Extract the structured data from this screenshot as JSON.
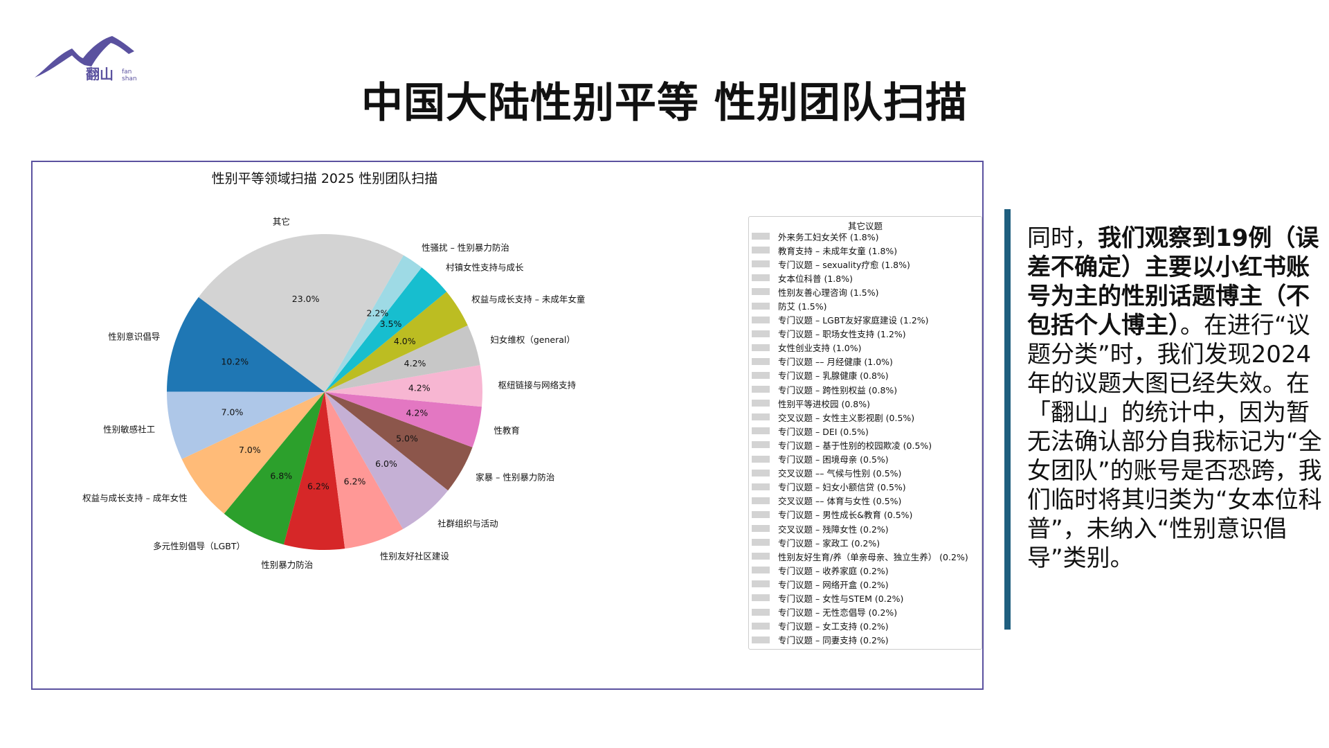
{
  "slide_title": "中国大陆性别平等 性别团队扫描",
  "logo": {
    "text": "翻山",
    "sub_line1": "fan",
    "sub_line2": "shan",
    "color": "#5a519f"
  },
  "chart_data": {
    "type": "pie",
    "title": "性别平等领域扫描 2025 性别团队扫描",
    "start_angle_deg": 60,
    "direction": "counterclockwise",
    "slices": [
      {
        "label": "其它",
        "value": 23.0,
        "pct_label": "23.0%",
        "color": "#d3d3d3"
      },
      {
        "label": "性别意识倡导",
        "value": 10.2,
        "pct_label": "10.2%",
        "color": "#1f77b4"
      },
      {
        "label": "性别敏感社工",
        "value": 7.0,
        "pct_label": "7.0%",
        "color": "#aec7e8"
      },
      {
        "label": "权益与成长支持 – 成年女性",
        "value": 7.0,
        "pct_label": "7.0%",
        "color": "#ffbb78"
      },
      {
        "label": "多元性别倡导（LGBT）",
        "value": 6.8,
        "pct_label": "6.8%",
        "color": "#2ca02c"
      },
      {
        "label": "性别暴力防治",
        "value": 6.2,
        "pct_label": "6.2%",
        "color": "#d62728"
      },
      {
        "label": "性别友好社区建设",
        "value": 6.2,
        "pct_label": "6.2%",
        "color": "#ff9896"
      },
      {
        "label": "社群组织与活动",
        "value": 6.0,
        "pct_label": "6.0%",
        "color": "#c5b0d5"
      },
      {
        "label": "家暴 – 性别暴力防治",
        "value": 5.0,
        "pct_label": "5.0%",
        "color": "#8c564b"
      },
      {
        "label": "性教育",
        "value": 4.2,
        "pct_label": "4.2%",
        "color": "#e377c2"
      },
      {
        "label": "枢纽链接与网络支持",
        "value": 4.2,
        "pct_label": "4.2%",
        "color": "#f7b6d2"
      },
      {
        "label": "妇女维权（general）",
        "value": 4.2,
        "pct_label": "4.2%",
        "color": "#c7c7c7"
      },
      {
        "label": "权益与成长支持 – 未成年女童",
        "value": 4.0,
        "pct_label": "4.0%",
        "color": "#bcbd22"
      },
      {
        "label": "村镇女性支持与成长",
        "value": 3.5,
        "pct_label": "3.5%",
        "color": "#17becf"
      },
      {
        "label": "性骚扰 – 性别暴力防治",
        "value": 2.2,
        "pct_label": "2.2%",
        "color": "#9edae5"
      }
    ],
    "legend": {
      "title": "其它议题",
      "placement": "right",
      "swatch_color": "#d3d3d3",
      "items": [
        "外来务工妇女关怀 (1.8%)",
        "教育支持 – 未成年女童 (1.8%)",
        "专门议题 – sexuality疗愈 (1.8%)",
        "女本位科普 (1.8%)",
        "性别友善心理咨询 (1.5%)",
        "防艾 (1.5%)",
        "专门议题 – LGBT友好家庭建设 (1.2%)",
        "专门议题 – 职场女性支持 (1.2%)",
        "女性创业支持 (1.0%)",
        "专门议题 –– 月经健康 (1.0%)",
        "专门议题 – 乳腺健康 (0.8%)",
        "专门议题 – 跨性别权益 (0.8%)",
        "性别平等进校园 (0.8%)",
        "交叉议题 – 女性主义影视剧 (0.5%)",
        "专门议题 – DEI (0.5%)",
        "专门议题 – 基于性别的校园欺凌 (0.5%)",
        "专门议题 – 困境母亲 (0.5%)",
        "交叉议题 –– 气候与性别 (0.5%)",
        "专门议题 – 妇女小额信贷 (0.5%)",
        "交叉议题 –– 体育与女性 (0.5%)",
        "专门议题 – 男性成长&教育 (0.5%)",
        "交叉议题 – 残障女性 (0.2%)",
        "专门议题 – 家政工 (0.2%)",
        "性别友好生育/养（单亲母亲、独立生养） (0.2%)",
        "专门议题 – 收养家庭 (0.2%)",
        "专门议题 – 网络开盒 (0.2%)",
        "专门议题 – 女性与STEM (0.2%)",
        "专门议题 – 无性恋倡导 (0.2%)",
        "专门议题 – 女工支持 (0.2%)",
        "专门议题 – 同妻支持 (0.2%)"
      ]
    }
  },
  "side_note": {
    "part1": "同时，",
    "part2_bold": "我们观察到19例（误差不确定）主要以小红书账号为主的性别话题博主（不包括个人博主）",
    "part3": "。在进行“议题分类”时，我们发现2024年的议题大图已经失效。在「翻山」的统计中，因为暂无法确认部分自我标记为“全女团队”的账号是否恐跨，我们临时将其归类为“女本位科普”，未纳入“性别意识倡导”类别。",
    "bar_color": "#1f5f7f"
  }
}
